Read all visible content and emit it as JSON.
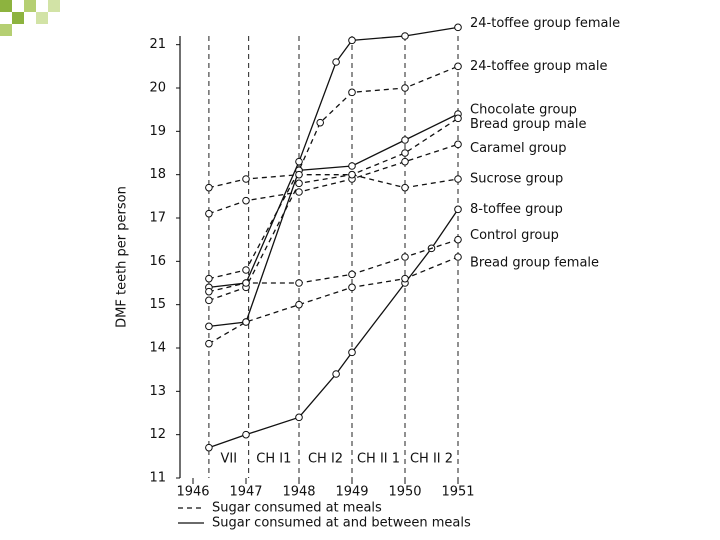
{
  "chart_data": {
    "type": "line",
    "y_label": "DMF teeth per person",
    "xlim": [
      1946,
      1951.2
    ],
    "ylim": [
      11,
      21.2
    ],
    "xticks": [
      1946,
      1947,
      1948,
      1949,
      1950,
      1951
    ],
    "yticks": [
      11,
      12,
      13,
      14,
      15,
      16,
      17,
      18,
      19,
      20,
      21
    ],
    "period_lines": [
      1946.3,
      1947.05,
      1948,
      1949,
      1950,
      1951
    ],
    "periods": [
      "VII",
      "CH I1",
      "CH I2",
      "CH II 1",
      "CH II 2"
    ],
    "series": [
      {
        "name": "24-toffee group female",
        "color": "#111111",
        "dashed": false,
        "x": [
          1946.3,
          1947,
          1948,
          1948.7,
          1949,
          1950,
          1951
        ],
        "values": [
          15.4,
          15.5,
          18.3,
          20.6,
          21.1,
          21.2,
          21.4
        ]
      },
      {
        "name": "24-toffee group male",
        "color": "#111111",
        "dashed": true,
        "x": [
          1946.3,
          1947,
          1948,
          1948.4,
          1949,
          1950,
          1951
        ],
        "values": [
          15.6,
          15.8,
          18.1,
          19.2,
          19.9,
          20.0,
          20.5
        ]
      },
      {
        "name": "Chocolate group",
        "color": "#111111",
        "dashed": false,
        "x": [
          1946.3,
          1947,
          1948,
          1949,
          1950,
          1951
        ],
        "values": [
          14.5,
          14.6,
          18.1,
          18.2,
          18.8,
          19.4
        ]
      },
      {
        "name": "Bread group male",
        "color": "#111111",
        "dashed": true,
        "x": [
          1946.3,
          1947,
          1948,
          1949,
          1950,
          1951
        ],
        "values": [
          15.1,
          15.4,
          17.8,
          18.0,
          18.5,
          19.3
        ]
      },
      {
        "name": "Caramel group",
        "color": "#111111",
        "dashed": true,
        "x": [
          1946.3,
          1947,
          1948,
          1949,
          1950,
          1951
        ],
        "values": [
          17.1,
          17.4,
          17.6,
          17.9,
          18.3,
          18.7
        ]
      },
      {
        "name": "Sucrose group",
        "color": "#111111",
        "dashed": true,
        "x": [
          1946.3,
          1947,
          1948,
          1949,
          1950,
          1951
        ],
        "values": [
          17.7,
          17.9,
          18.0,
          18.0,
          17.7,
          17.9
        ]
      },
      {
        "name": "8-toffee group",
        "color": "#111111",
        "dashed": false,
        "x": [
          1946.3,
          1947,
          1948,
          1948.7,
          1949,
          1950,
          1950.5,
          1951
        ],
        "values": [
          11.7,
          12.0,
          12.4,
          13.4,
          13.9,
          15.5,
          16.3,
          17.2
        ]
      },
      {
        "name": "Control group",
        "color": "#111111",
        "dashed": true,
        "x": [
          1946.3,
          1947,
          1948,
          1949,
          1950,
          1951
        ],
        "values": [
          15.3,
          15.5,
          15.5,
          15.7,
          16.1,
          16.5
        ]
      },
      {
        "name": "Bread group female",
        "color": "#111111",
        "dashed": true,
        "x": [
          1946.3,
          1947,
          1948,
          1949,
          1950,
          1951
        ],
        "values": [
          14.1,
          14.6,
          15.0,
          15.4,
          15.6,
          16.1
        ]
      }
    ],
    "style_legend": [
      {
        "label": "Sugar consumed at meals",
        "dashed": true
      },
      {
        "label": "Sugar consumed at and between meals",
        "dashed": false
      }
    ]
  }
}
